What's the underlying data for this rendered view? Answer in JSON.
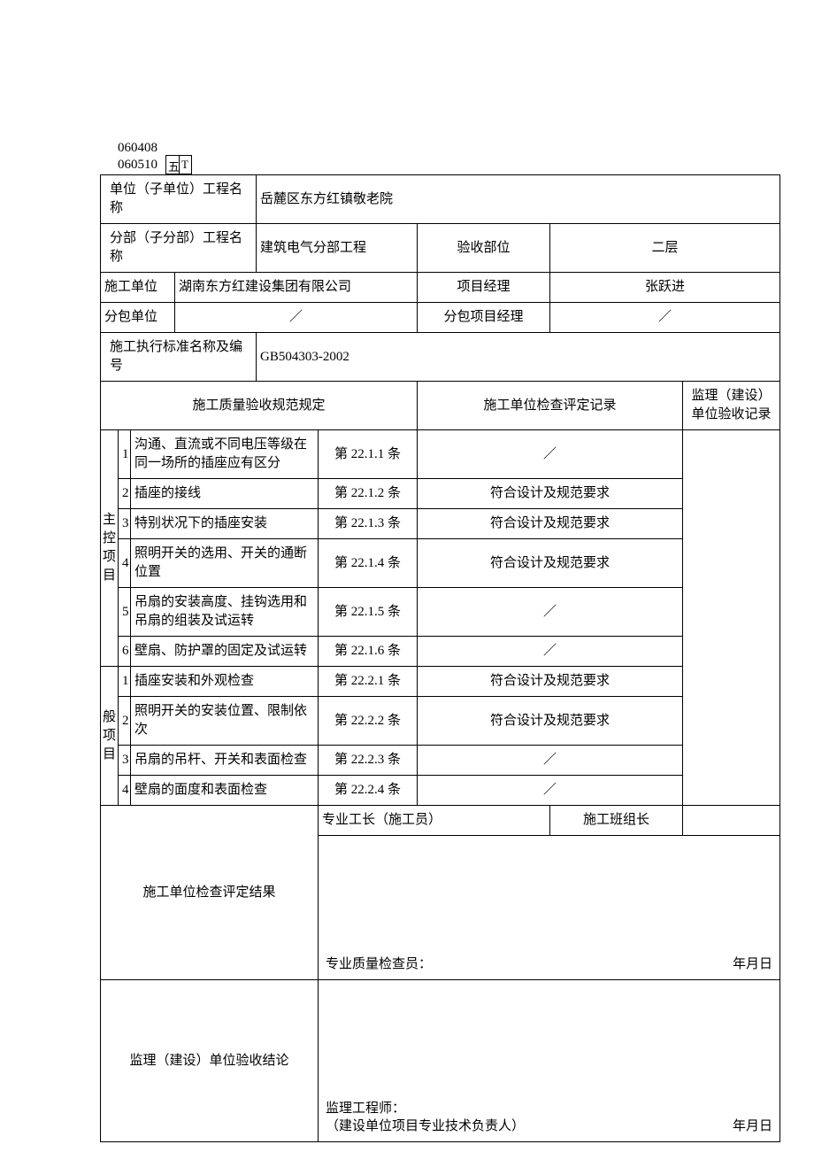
{
  "codes": {
    "a": "060408",
    "b": "060510"
  },
  "smallbox": {
    "left": "五",
    "right": "T"
  },
  "header": {
    "unit_label": "单位（子单位）工程名称",
    "unit_value": "岳麓区东方红镇敬老院",
    "section_label": "分部（子分部）工程名称",
    "section_value": "建筑电气分部工程",
    "accept_part_label": "验收部位",
    "accept_part_value": "二层",
    "contractor_label": "施工单位",
    "contractor_value": "湖南东方红建设集团有限公司",
    "pm_label": "项目经理",
    "pm_value": "张跃进",
    "sub_label": "分包单位",
    "sub_value": "／",
    "sub_pm_label": "分包项目经理",
    "sub_pm_value": "／",
    "std_label": "施工执行标准名称及编号",
    "std_value": "GB504303-2002",
    "spec_title": "施工质量验收规范规定",
    "record_title": "施工单位检查评定记录",
    "sup_record_title": "监理（建设）单位验收记录"
  },
  "groups": {
    "main": {
      "label": "主控项目"
    },
    "general": {
      "label": "般项目"
    }
  },
  "rows": {
    "m1": {
      "n": "1",
      "desc": "沟通、直流或不同电压等级在同一场所的插座应有区分",
      "clause": "第 22.1.1 条",
      "rec": "／"
    },
    "m2": {
      "n": "2",
      "desc": "插座的接线",
      "clause": "第 22.1.2 条",
      "rec": "符合设计及规范要求"
    },
    "m3": {
      "n": "3",
      "desc": "特别状况下的插座安装",
      "clause": "第 22.1.3 条",
      "rec": "符合设计及规范要求"
    },
    "m4": {
      "n": "4",
      "desc": "照明开关的选用、开关的通断位置",
      "clause": "第 22.1.4 条",
      "rec": "符合设计及规范要求"
    },
    "m5": {
      "n": "5",
      "desc": "吊扇的安装高度、挂钩选用和吊扇的组装及试运转",
      "clause": "第 22.1.5 条",
      "rec": "／"
    },
    "m6": {
      "n": "6",
      "desc": "壁扇、防护罩的固定及试运转",
      "clause": "第 22.1.6 条",
      "rec": "／"
    },
    "g1": {
      "n": "1",
      "desc": "插座安装和外观检查",
      "clause": "第 22.2.1 条",
      "rec": "符合设计及规范要求"
    },
    "g2": {
      "n": "2",
      "desc": "照明开关的安装位置、限制依次",
      "clause": "第 22.2.2 条",
      "rec": "符合设计及规范要求"
    },
    "g3": {
      "n": "3",
      "desc": "吊扇的吊杆、开关和表面检查",
      "clause": "第 22.2.3 条",
      "rec": "／"
    },
    "g4": {
      "n": "4",
      "desc": "壁扇的面度和表面检查",
      "clause": "第 22.2.4 条",
      "rec": "／"
    }
  },
  "footer": {
    "result_label": "施工单位检查评定结果",
    "foreman_label": "专业工长（施工员）",
    "team_label": "施工班组长",
    "qc_label": "专业质量检查员：",
    "date_label": "年月日",
    "conclusion_label": "监理（建设）单位验收结论",
    "sup_eng_label": "监理工程师：",
    "owner_label": "（建设单位项目专业技术负责人）"
  }
}
